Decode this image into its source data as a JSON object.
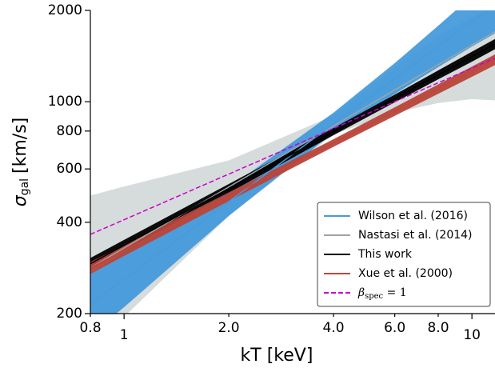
{
  "chart_data": {
    "type": "line",
    "xlabel": "kT [keV]",
    "ylabel": {
      "symbol": "σ",
      "subscript": "gal",
      "unit": "[km/s]"
    },
    "xscale": "log",
    "yscale": "log",
    "x": [
      0.8,
      1,
      2,
      4,
      6,
      8,
      10,
      11.65
    ],
    "xlim": [
      0.8,
      11.65
    ],
    "ylim": [
      200,
      2000
    ],
    "xticks": [
      {
        "value": 0.8,
        "label": "0.8"
      },
      1,
      {
        "value": 2,
        "label": "2.0"
      },
      {
        "value": 4,
        "label": "4.0"
      },
      {
        "value": 6,
        "label": "6.0"
      },
      {
        "value": 8,
        "label": "8.0"
      },
      10
    ],
    "yticks": [
      200,
      400,
      600,
      800,
      1000,
      2000
    ],
    "legend": "lower right",
    "series": [
      {
        "name": "Nastasi et al. (2014)",
        "color": "#a0a4a4",
        "band_color": "#d6dbdb",
        "band_opacity": 1,
        "values": [
          283,
          329,
          523,
          832,
          1093,
          1324,
          1538,
          1700
        ],
        "lower": [
          165,
          195,
          420,
          780,
          920,
          990,
          1020,
          1010
        ],
        "upper": [
          490,
          525,
          640,
          900,
          1300,
          1650,
          1900,
          2040
        ]
      },
      {
        "name": "Wilson et al. (2016)",
        "color": "#4a9ad8",
        "band_color": "#3d96da",
        "band_opacity": 0.9,
        "values": [
          215,
          260,
          468,
          845,
          1191,
          1522,
          1839,
          2092
        ],
        "lower": [
          170,
          210,
          420,
          790,
          1060,
          1300,
          1520,
          1680
        ],
        "upper": [
          270,
          320,
          520,
          920,
          1340,
          1780,
          2230,
          2600
        ]
      },
      {
        "name": "This work",
        "color": "#000000",
        "band_color": "#000000",
        "band_opacity": 0.95,
        "values": [
          292,
          336,
          517,
          796,
          1025,
          1226,
          1408,
          1549
        ],
        "lower": [
          280,
          322,
          500,
          775,
          995,
          1185,
          1355,
          1490
        ],
        "upper": [
          305,
          350,
          535,
          818,
          1055,
          1268,
          1462,
          1610
        ]
      },
      {
        "name": "Xue et al. (2000)",
        "color": "#c0473a",
        "band_color": "#b8453a",
        "band_opacity": 0.95,
        "values": [
          283,
          323,
          486,
          731,
          928,
          1101,
          1256,
          1376
        ],
        "lower": [
          270,
          310,
          470,
          710,
          898,
          1062,
          1208,
          1320
        ],
        "upper": [
          296,
          336,
          502,
          752,
          958,
          1140,
          1305,
          1432
        ]
      },
      {
        "name": "β",
        "name_subscript": "spec",
        "name_suffix": " = 1",
        "color": "#cc00cc",
        "style": "dashed",
        "values": [
          365,
          408,
          577,
          816,
          1000,
          1154,
          1290,
          1393
        ]
      }
    ],
    "legend_order": [
      1,
      0,
      2,
      3,
      4
    ]
  }
}
